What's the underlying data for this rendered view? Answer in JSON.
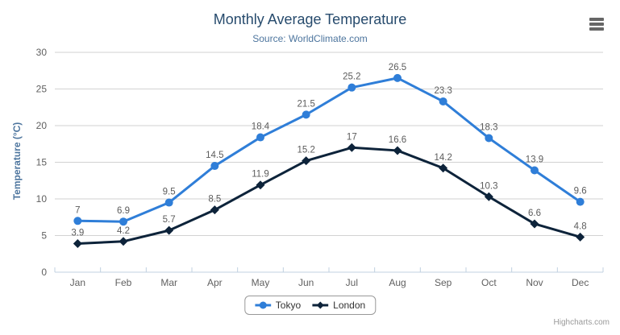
{
  "header": {
    "title": "Monthly Average Temperature",
    "subtitle": "Source: WorldClimate.com"
  },
  "credits": "Highcharts.com",
  "colors": {
    "background": "#ffffff",
    "title": "#274b6d",
    "subtitle": "#4d759e",
    "axis_title": "#4d759e",
    "axis_labels": "#606060",
    "data_labels": "#5c5c5c",
    "gridline": "#d2d2d2",
    "axis_line": "#c0d0e0",
    "legend_text": "#333333",
    "legend_border": "#999999",
    "credits_text": "#999999",
    "menu_icon": "#666666",
    "tokyo": "#2f7ed8",
    "london": "#0d233a"
  },
  "chart_data": {
    "type": "line",
    "title": "Monthly Average Temperature",
    "subtitle": "Source: WorldClimate.com",
    "categories": [
      "Jan",
      "Feb",
      "Mar",
      "Apr",
      "May",
      "Jun",
      "Jul",
      "Aug",
      "Sep",
      "Oct",
      "Nov",
      "Dec"
    ],
    "series": [
      {
        "name": "Tokyo",
        "color": "#2f7ed8",
        "marker": "circle",
        "values": [
          7,
          6.9,
          9.5,
          14.5,
          18.4,
          21.5,
          25.2,
          26.5,
          23.3,
          18.3,
          13.9,
          9.6
        ]
      },
      {
        "name": "London",
        "color": "#0d233a",
        "marker": "diamond",
        "values": [
          3.9,
          4.2,
          5.7,
          8.5,
          11.9,
          15.2,
          17,
          16.6,
          14.2,
          10.3,
          6.6,
          4.8
        ]
      }
    ],
    "xlabel": "",
    "ylabel": "Temperature (°C)",
    "ylim": [
      0,
      30
    ],
    "ytick_step": 5,
    "grid": true,
    "legend_position": "bottom",
    "data_labels": true
  }
}
